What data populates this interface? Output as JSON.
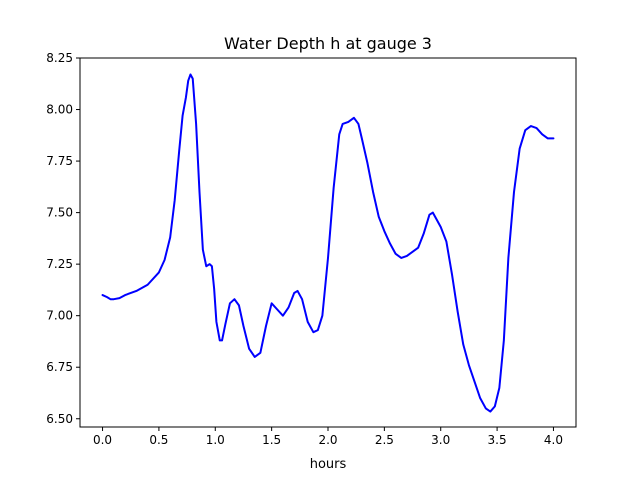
{
  "chart_data": {
    "type": "line",
    "title": "Water Depth h at gauge 3",
    "xlabel": "hours",
    "ylabel": "",
    "xlim": [
      -0.2,
      4.2
    ],
    "ylim": [
      6.46,
      8.25
    ],
    "grid": false,
    "x_ticks": [
      {
        "value": 0.0,
        "label": "0.0"
      },
      {
        "value": 0.5,
        "label": "0.5"
      },
      {
        "value": 1.0,
        "label": "1.0"
      },
      {
        "value": 1.5,
        "label": "1.5"
      },
      {
        "value": 2.0,
        "label": "2.0"
      },
      {
        "value": 2.5,
        "label": "2.5"
      },
      {
        "value": 3.0,
        "label": "3.0"
      },
      {
        "value": 3.5,
        "label": "3.5"
      },
      {
        "value": 4.0,
        "label": "4.0"
      }
    ],
    "y_ticks": [
      {
        "value": 6.5,
        "label": "6.50"
      },
      {
        "value": 6.75,
        "label": "6.75"
      },
      {
        "value": 7.0,
        "label": "7.00"
      },
      {
        "value": 7.25,
        "label": "7.25"
      },
      {
        "value": 7.5,
        "label": "7.50"
      },
      {
        "value": 7.75,
        "label": "7.75"
      },
      {
        "value": 8.0,
        "label": "8.00"
      },
      {
        "value": 8.25,
        "label": "8.25"
      }
    ],
    "series": [
      {
        "color": "#0000ff",
        "points": [
          [
            0.0,
            7.1
          ],
          [
            0.04,
            7.09
          ],
          [
            0.07,
            7.08
          ],
          [
            0.1,
            7.08
          ],
          [
            0.15,
            7.085
          ],
          [
            0.2,
            7.1
          ],
          [
            0.3,
            7.12
          ],
          [
            0.4,
            7.15
          ],
          [
            0.5,
            7.21
          ],
          [
            0.55,
            7.27
          ],
          [
            0.6,
            7.38
          ],
          [
            0.64,
            7.56
          ],
          [
            0.68,
            7.8
          ],
          [
            0.71,
            7.97
          ],
          [
            0.74,
            8.06
          ],
          [
            0.76,
            8.14
          ],
          [
            0.78,
            8.17
          ],
          [
            0.8,
            8.15
          ],
          [
            0.83,
            7.93
          ],
          [
            0.86,
            7.6
          ],
          [
            0.89,
            7.32
          ],
          [
            0.92,
            7.24
          ],
          [
            0.95,
            7.25
          ],
          [
            0.97,
            7.24
          ],
          [
            0.99,
            7.13
          ],
          [
            1.01,
            6.97
          ],
          [
            1.04,
            6.88
          ],
          [
            1.06,
            6.88
          ],
          [
            1.09,
            6.96
          ],
          [
            1.13,
            7.06
          ],
          [
            1.17,
            7.08
          ],
          [
            1.21,
            7.05
          ],
          [
            1.25,
            6.95
          ],
          [
            1.3,
            6.84
          ],
          [
            1.35,
            6.8
          ],
          [
            1.4,
            6.82
          ],
          [
            1.45,
            6.95
          ],
          [
            1.5,
            7.06
          ],
          [
            1.55,
            7.03
          ],
          [
            1.6,
            7.0
          ],
          [
            1.65,
            7.04
          ],
          [
            1.7,
            7.11
          ],
          [
            1.73,
            7.12
          ],
          [
            1.77,
            7.08
          ],
          [
            1.82,
            6.97
          ],
          [
            1.87,
            6.92
          ],
          [
            1.91,
            6.93
          ],
          [
            1.95,
            7.0
          ],
          [
            2.0,
            7.28
          ],
          [
            2.05,
            7.62
          ],
          [
            2.1,
            7.88
          ],
          [
            2.13,
            7.93
          ],
          [
            2.18,
            7.94
          ],
          [
            2.23,
            7.96
          ],
          [
            2.27,
            7.93
          ],
          [
            2.3,
            7.86
          ],
          [
            2.35,
            7.74
          ],
          [
            2.4,
            7.6
          ],
          [
            2.45,
            7.48
          ],
          [
            2.5,
            7.41
          ],
          [
            2.55,
            7.35
          ],
          [
            2.6,
            7.3
          ],
          [
            2.65,
            7.28
          ],
          [
            2.7,
            7.29
          ],
          [
            2.75,
            7.31
          ],
          [
            2.8,
            7.33
          ],
          [
            2.85,
            7.4
          ],
          [
            2.9,
            7.49
          ],
          [
            2.93,
            7.5
          ],
          [
            2.96,
            7.47
          ],
          [
            3.0,
            7.43
          ],
          [
            3.05,
            7.36
          ],
          [
            3.1,
            7.2
          ],
          [
            3.15,
            7.02
          ],
          [
            3.2,
            6.86
          ],
          [
            3.25,
            6.76
          ],
          [
            3.3,
            6.68
          ],
          [
            3.35,
            6.6
          ],
          [
            3.4,
            6.55
          ],
          [
            3.44,
            6.535
          ],
          [
            3.48,
            6.56
          ],
          [
            3.52,
            6.65
          ],
          [
            3.56,
            6.88
          ],
          [
            3.6,
            7.28
          ],
          [
            3.65,
            7.6
          ],
          [
            3.7,
            7.81
          ],
          [
            3.75,
            7.9
          ],
          [
            3.8,
            7.92
          ],
          [
            3.85,
            7.91
          ],
          [
            3.9,
            7.88
          ],
          [
            3.95,
            7.86
          ],
          [
            4.0,
            7.86
          ]
        ]
      }
    ]
  }
}
